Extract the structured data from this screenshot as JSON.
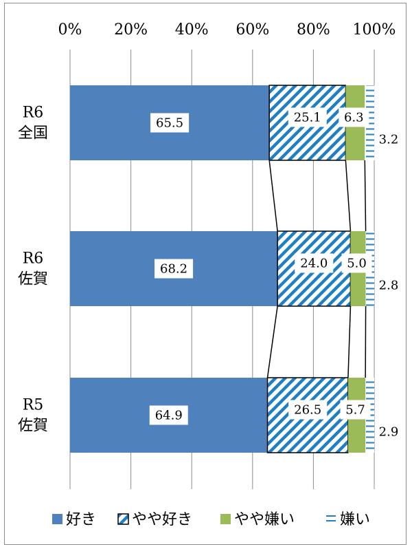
{
  "chart_data": {
    "type": "bar",
    "orientation": "horizontal",
    "stacked": true,
    "percent_scale": true,
    "categories": [
      {
        "line1": "R6",
        "line2": "全国"
      },
      {
        "line1": "R6",
        "line2": "佐賀"
      },
      {
        "line1": "R5",
        "line2": "佐賀"
      }
    ],
    "series": [
      {
        "name": "好き",
        "values": [
          65.5,
          68.2,
          64.9
        ],
        "color": "#4f81bd",
        "pattern": "solid"
      },
      {
        "name": "やや好き",
        "values": [
          25.1,
          24.0,
          26.5
        ],
        "color": "#1f7fc4",
        "pattern": "diagonal-stripes"
      },
      {
        "name": "やや嫌い",
        "values": [
          6.3,
          5.0,
          5.7
        ],
        "color": "#9bbb59",
        "pattern": "solid"
      },
      {
        "name": "嫌い",
        "values": [
          3.2,
          2.8,
          2.9
        ],
        "color": "#1f7fc4",
        "pattern": "horizontal-dashes"
      }
    ],
    "x_ticks": [
      "0%",
      "20%",
      "40%",
      "60%",
      "80%",
      "100%"
    ],
    "xlim": [
      0,
      100
    ],
    "grid": true,
    "legend_position": "bottom",
    "series_connector_lines": true
  }
}
